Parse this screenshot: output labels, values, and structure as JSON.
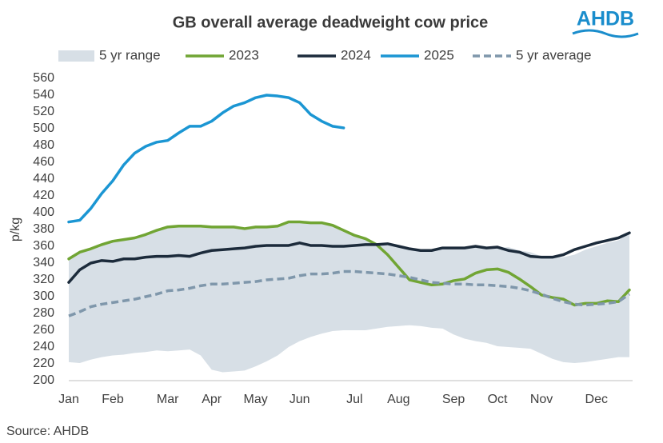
{
  "chart_data": {
    "type": "line",
    "title": "GB overall average deadweight cow price",
    "logo": "AHDB",
    "y_label": "p/kg",
    "source": "Source: AHDB",
    "legend": "top",
    "grid": false,
    "ylim": [
      200,
      560
    ],
    "yticks": [
      200,
      220,
      240,
      260,
      280,
      300,
      320,
      340,
      360,
      380,
      400,
      420,
      440,
      460,
      480,
      500,
      520,
      540,
      560
    ],
    "categories": [
      "Jan",
      null,
      null,
      null,
      "Feb",
      null,
      null,
      null,
      null,
      "Mar",
      null,
      null,
      null,
      "Apr",
      null,
      null,
      null,
      "May",
      null,
      null,
      null,
      "Jun",
      null,
      null,
      null,
      null,
      "Jul",
      null,
      null,
      null,
      "Aug",
      null,
      null,
      null,
      null,
      "Sep",
      null,
      null,
      null,
      "Oct",
      null,
      null,
      null,
      "Nov",
      null,
      null,
      null,
      null,
      "Dec",
      null,
      null,
      null
    ],
    "range": {
      "name": "5 yr range",
      "color": "#d7dfe6",
      "low": [
        222,
        221,
        225,
        228,
        230,
        231,
        233,
        234,
        236,
        235,
        236,
        237,
        230,
        213,
        210,
        211,
        212,
        217,
        223,
        230,
        240,
        247,
        252,
        256,
        259,
        260,
        260,
        260,
        262,
        264,
        265,
        266,
        265,
        263,
        262,
        255,
        250,
        247,
        245,
        241,
        240,
        239,
        238,
        232,
        226,
        222,
        221,
        222,
        224,
        226,
        228,
        228
      ],
      "high": [
        345,
        353,
        357,
        362,
        366,
        368,
        370,
        374,
        379,
        383,
        384,
        384,
        384,
        383,
        383,
        383,
        381,
        383,
        383,
        384,
        389,
        389,
        388,
        388,
        385,
        379,
        373,
        369,
        363,
        363,
        360,
        357,
        355,
        355,
        358,
        358,
        358,
        360,
        358,
        358,
        359,
        355,
        353,
        348,
        347,
        347,
        350,
        356,
        360,
        364,
        367,
        376
      ]
    },
    "series": [
      {
        "name": "2023",
        "color": "#71a534",
        "dash": false,
        "values": [
          345,
          353,
          357,
          362,
          366,
          368,
          370,
          374,
          379,
          383,
          384,
          384,
          384,
          383,
          383,
          383,
          381,
          383,
          383,
          384,
          389,
          389,
          388,
          388,
          385,
          379,
          373,
          369,
          362,
          350,
          335,
          320,
          317,
          314,
          315,
          319,
          321,
          328,
          332,
          333,
          329,
          321,
          312,
          302,
          299,
          297,
          290,
          292,
          292,
          295,
          294,
          308
        ]
      },
      {
        "name": "2024",
        "color": "#1c2b3b",
        "dash": false,
        "values": [
          317,
          332,
          340,
          343,
          342,
          345,
          345,
          347,
          348,
          348,
          349,
          348,
          352,
          355,
          356,
          357,
          358,
          360,
          361,
          361,
          361,
          364,
          361,
          361,
          360,
          360,
          361,
          362,
          362,
          363,
          360,
          357,
          355,
          355,
          358,
          358,
          358,
          360,
          358,
          359,
          355,
          353,
          348,
          347,
          347,
          350,
          356,
          360,
          364,
          367,
          370,
          376
        ]
      },
      {
        "name": "2025",
        "color": "#1b96d3",
        "dash": false,
        "values": [
          389,
          391,
          405,
          423,
          438,
          457,
          471,
          479,
          484,
          486,
          495,
          503,
          503,
          509,
          519,
          527,
          531,
          537,
          540,
          539,
          537,
          531,
          517,
          509,
          503,
          501,
          null,
          null,
          null,
          null,
          null,
          null,
          null,
          null,
          null,
          null,
          null,
          null,
          null,
          null,
          null,
          null,
          null,
          null,
          null,
          null,
          null,
          null,
          null,
          null,
          null,
          null
        ]
      },
      {
        "name": "5 yr average",
        "color": "#7f97ab",
        "dash": true,
        "values": [
          277,
          282,
          288,
          291,
          293,
          295,
          297,
          300,
          303,
          307,
          308,
          310,
          313,
          315,
          315,
          316,
          317,
          318,
          320,
          321,
          322,
          325,
          327,
          327,
          328,
          330,
          330,
          329,
          328,
          327,
          325,
          323,
          320,
          317,
          316,
          315,
          315,
          314,
          314,
          313,
          312,
          310,
          307,
          303,
          298,
          294,
          291,
          290,
          291,
          292,
          294,
          303
        ]
      }
    ]
  }
}
